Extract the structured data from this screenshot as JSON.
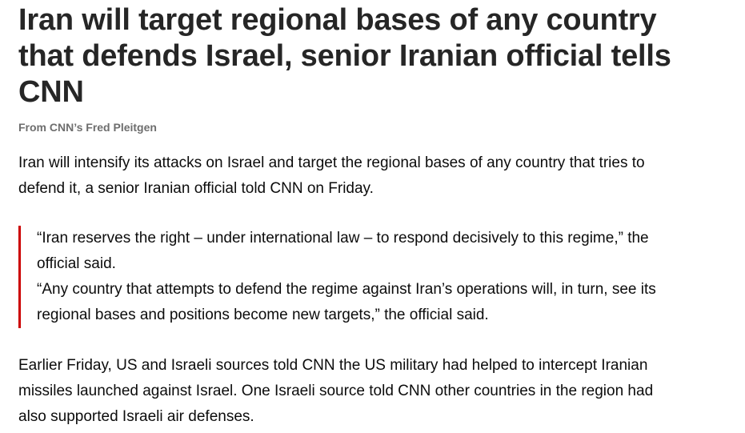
{
  "headline": {
    "lines": [
      "Iran will target regional bases of any country",
      "that defends Israel, senior Iranian official tells",
      "CNN"
    ]
  },
  "byline": "From CNN’s Fred Pleitgen",
  "paragraph1": {
    "lines": [
      "Iran will intensify its attacks on Israel and target the regional bases of any country that tries to",
      "defend it, a senior Iranian official told CNN on Friday."
    ]
  },
  "quote": {
    "accent_color": "#cc0000",
    "paragraphs": [
      {
        "lines": [
          "“Iran reserves the right – under international law – to respond decisively to this regime,” the",
          "official said."
        ]
      },
      {
        "lines": [
          "“Any country that attempts to defend the regime against Iran’s operations will, in turn, see its",
          "regional bases and positions become new targets,” the official said."
        ]
      }
    ]
  },
  "paragraph2": {
    "lines": [
      "Earlier Friday, US and Israeli sources told CNN the US military had helped to intercept Iranian",
      "missiles launched against Israel. One Israeli source told CNN other countries in the region had",
      "also supported Israeli air defenses."
    ]
  }
}
